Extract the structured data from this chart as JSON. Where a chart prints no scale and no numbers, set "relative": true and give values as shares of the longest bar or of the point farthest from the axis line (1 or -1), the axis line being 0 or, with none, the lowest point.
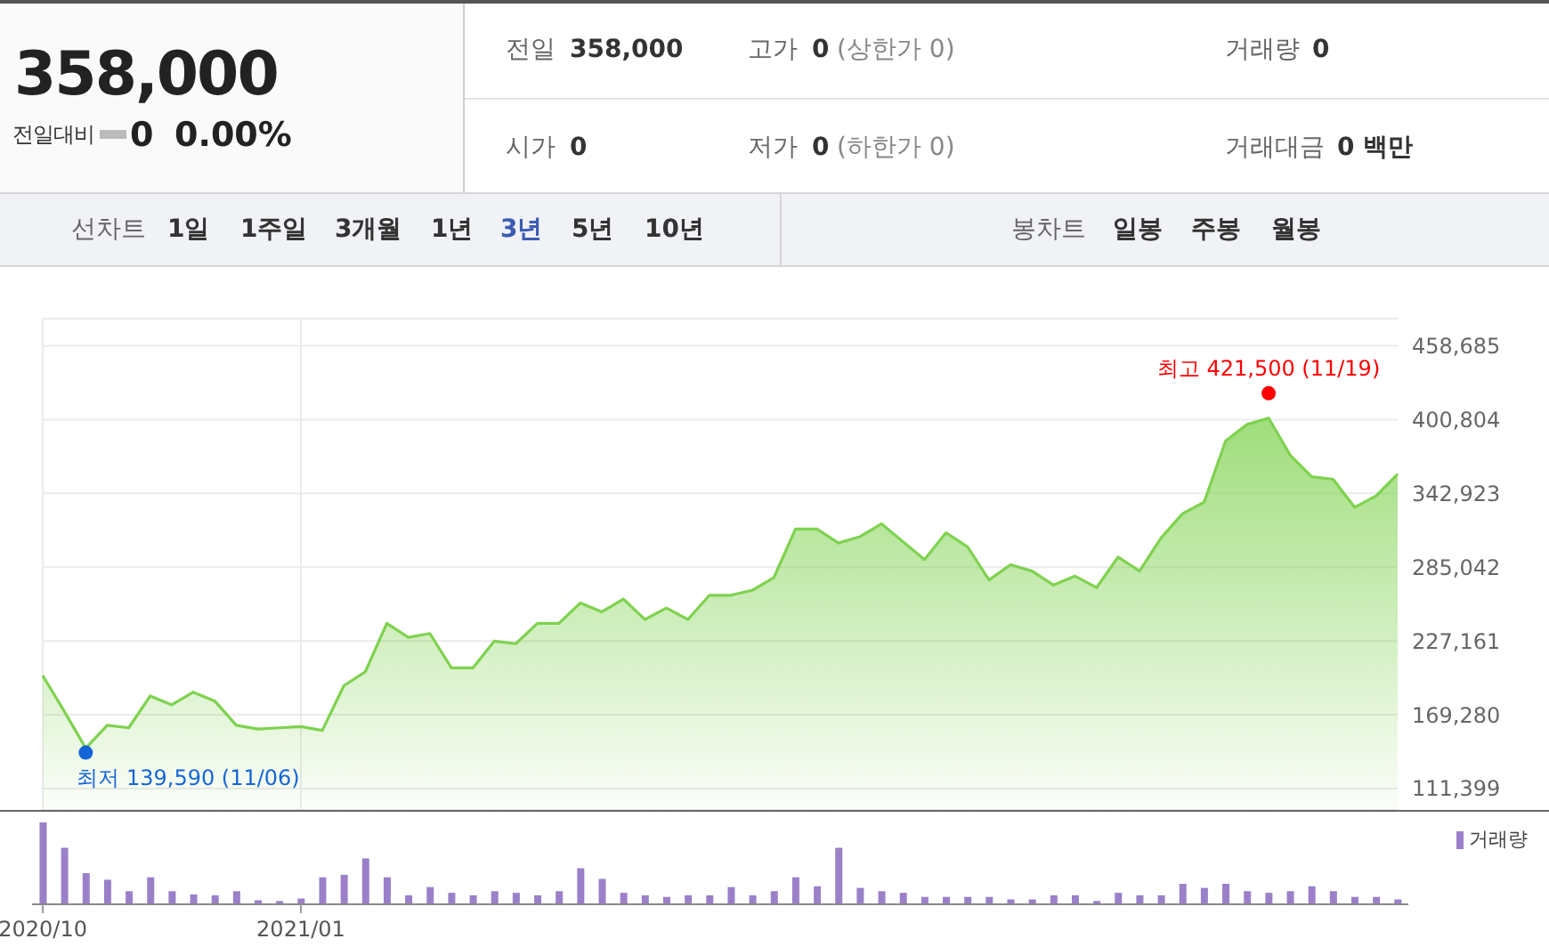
{
  "chart_data": [
    {
      "type": "other",
      "title": "358,000",
      "annotations": [
        "전일대비",
        "0",
        "0.00%",
        "전일",
        "358,000",
        "고가",
        "0",
        "(상한가 0)",
        "거래량",
        "0",
        "시가",
        "0",
        "저가",
        "0",
        "(하한가 0)",
        "거래대금",
        "0 백만",
        "선차트",
        "1일",
        "1주일",
        "3개월",
        "1년",
        "3년",
        "5년",
        "10년",
        "봉차트",
        "일봉",
        "주봉",
        "월봉"
      ]
    },
    {
      "type": "area",
      "tick_labels": "y",
      "grid": true,
      "categories": [
        "2020/10",
        null,
        null,
        null,
        null,
        null,
        null,
        null,
        null,
        null,
        null,
        null,
        "2021/01",
        null,
        null,
        null,
        null,
        null,
        null,
        null,
        null,
        null,
        null,
        null,
        null,
        null,
        null,
        null,
        null,
        null,
        null,
        null,
        null,
        null,
        null,
        null,
        null,
        null,
        null,
        null,
        null,
        null,
        null,
        null,
        null,
        null,
        null,
        null,
        null,
        null,
        null,
        null,
        null,
        null,
        null,
        null,
        null,
        null,
        null,
        null,
        null,
        null,
        null,
        null
      ],
      "ylim": [
        94600,
        480000
      ],
      "yticks": [
        {
          "value": 111399,
          "label": "111,399"
        },
        {
          "value": 169280,
          "label": "169,280"
        },
        {
          "value": 227161,
          "label": "227,161"
        },
        {
          "value": 285042,
          "label": "285,042"
        },
        {
          "value": 342923,
          "label": "342,923"
        },
        {
          "value": 400804,
          "label": "400,804"
        },
        {
          "value": 458685,
          "label": "458,685"
        }
      ],
      "series": [
        {
          "color": "#7fd24f",
          "values": [
            200000,
            172000,
            143000,
            161000,
            159000,
            184000,
            177000,
            187000,
            180000,
            161000,
            158000,
            159000,
            160000,
            157000,
            192000,
            203000,
            241000,
            230000,
            233000,
            206000,
            206000,
            227000,
            225000,
            241000,
            241000,
            257000,
            250000,
            260000,
            244000,
            253000,
            244000,
            263000,
            263000,
            267000,
            277000,
            315000,
            315000,
            304000,
            309000,
            319000,
            305000,
            291000,
            312000,
            301000,
            275000,
            287000,
            282000,
            271000,
            278000,
            269000,
            293000,
            282000,
            308000,
            327000,
            336000,
            384000,
            397000,
            402000,
            373000,
            356000,
            354000,
            332000,
            341000,
            358000
          ]
        },
        {
          "type": "scatter",
          "marker": "circle",
          "values": [
            null,
            null,
            139590,
            null,
            null,
            null,
            null,
            null,
            null,
            null,
            null,
            null,
            null,
            null,
            null,
            null,
            null,
            null,
            null,
            null,
            null,
            null,
            null,
            null,
            null,
            null,
            null,
            null,
            null,
            null,
            null,
            null,
            null,
            null,
            null,
            null,
            null,
            null,
            null,
            null,
            null,
            null,
            null,
            null,
            null,
            null,
            null,
            null,
            null,
            null,
            null,
            null,
            null,
            null,
            null,
            null,
            null,
            421500,
            null,
            null,
            null,
            null,
            null,
            null
          ],
          "colors": [
            null,
            null,
            "#1565d8",
            null,
            null,
            null,
            null,
            null,
            null,
            null,
            null,
            null,
            null,
            null,
            null,
            null,
            null,
            null,
            null,
            null,
            null,
            null,
            null,
            null,
            null,
            null,
            null,
            null,
            null,
            null,
            null,
            null,
            null,
            null,
            null,
            null,
            null,
            null,
            null,
            null,
            null,
            null,
            null,
            null,
            null,
            null,
            null,
            null,
            null,
            null,
            null,
            null,
            null,
            null,
            null,
            null,
            null,
            "#ff0000",
            null,
            null,
            null,
            null,
            null,
            null
          ]
        }
      ],
      "annotations": [
        "최저 139,590 (11/06)",
        "최고 421,500 (11/19)"
      ]
    },
    {
      "type": "bar",
      "relative": true,
      "tick_labels": "x",
      "legend": "top right",
      "categories": [
        "2020/10",
        null,
        null,
        null,
        null,
        null,
        null,
        null,
        null,
        null,
        null,
        null,
        "2021/01",
        null,
        null,
        null,
        null,
        null,
        null,
        null,
        null,
        null,
        null,
        null,
        null,
        null,
        null,
        null,
        null,
        null,
        null,
        null,
        null,
        null,
        null,
        null,
        null,
        null,
        null,
        null,
        null,
        null,
        null,
        null,
        null,
        null,
        null,
        null,
        null,
        null,
        null,
        null,
        null,
        null,
        null,
        null,
        null,
        null,
        null,
        null,
        null,
        null,
        null,
        null
      ],
      "series": [
        {
          "name": "거래량",
          "color": "#9b80c9",
          "values": [
            1.0,
            0.69,
            0.38,
            0.3,
            0.16,
            0.33,
            0.16,
            0.12,
            0.11,
            0.16,
            0.05,
            0.04,
            0.07,
            0.33,
            0.36,
            0.56,
            0.33,
            0.11,
            0.21,
            0.14,
            0.11,
            0.16,
            0.14,
            0.11,
            0.16,
            0.44,
            0.31,
            0.14,
            0.11,
            0.09,
            0.11,
            0.11,
            0.21,
            0.11,
            0.16,
            0.33,
            0.22,
            0.69,
            0.2,
            0.16,
            0.14,
            0.09,
            0.09,
            0.09,
            0.09,
            0.06,
            0.06,
            0.11,
            0.11,
            0.04,
            0.14,
            0.11,
            0.11,
            0.25,
            0.2,
            0.25,
            0.16,
            0.14,
            0.16,
            0.22,
            0.16,
            0.09,
            0.09,
            0.06
          ]
        }
      ]
    }
  ]
}
